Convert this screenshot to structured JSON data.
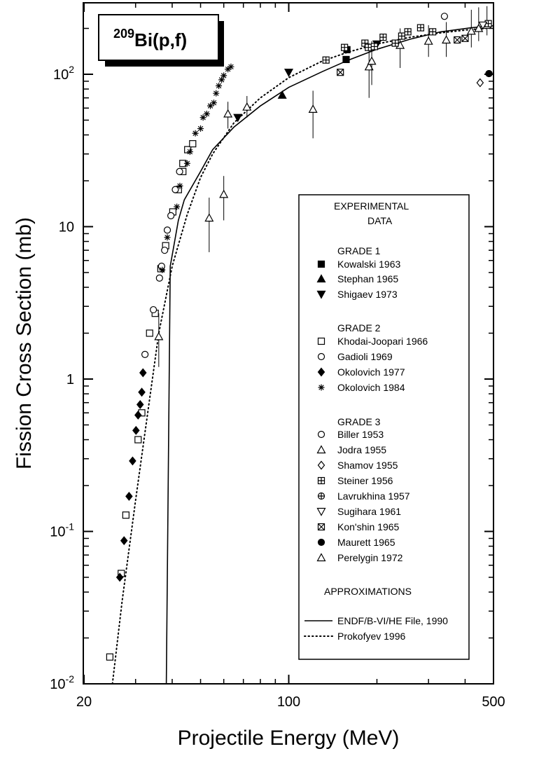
{
  "chart_data": {
    "type": "scatter",
    "title": {
      "iso": "209",
      "main": "Bi(p,f)"
    },
    "xlabel": "Projectile Energy (MeV)",
    "ylabel": "Fission Cross Section (mb)",
    "x_scale": "log",
    "y_scale": "log",
    "xlim": [
      20,
      500
    ],
    "ylim": [
      0.01,
      280
    ],
    "x_ticks": [
      {
        "v": 20,
        "label": "20"
      },
      {
        "v": 100,
        "label": "100"
      },
      {
        "v": 500,
        "label": "500"
      }
    ],
    "y_ticks": [
      {
        "v": 0.01,
        "base": "10",
        "exp": "-2"
      },
      {
        "v": 0.1,
        "base": "10",
        "exp": "-1"
      },
      {
        "v": 1,
        "base": "1",
        "exp": ""
      },
      {
        "v": 10,
        "base": "10",
        "exp": ""
      },
      {
        "v": 100,
        "base": "10",
        "exp": "2"
      }
    ],
    "legend": {
      "position": "right-middle",
      "header1": "EXPERIMENTAL",
      "header2": "DATA",
      "grade1": "GRADE 1",
      "grade2": "GRADE 2",
      "grade3": "GRADE 3",
      "approx": "APPROXIMATIONS"
    },
    "series": [
      {
        "name": "Kowalski 1963",
        "marker": "square-filled",
        "grade": 1,
        "points": [
          [
            157,
            125
          ],
          [
            158,
            145
          ]
        ]
      },
      {
        "name": "Stephan 1965",
        "marker": "triangle-filled",
        "grade": 1,
        "points": [
          [
            95,
            73
          ]
        ]
      },
      {
        "name": "Shigaev 1973",
        "marker": "triangle-down-filled",
        "grade": 1,
        "points": [
          [
            67,
            52
          ],
          [
            100,
            103
          ],
          [
            200,
            158
          ]
        ]
      },
      {
        "name": "Khodai-Joopari 1966",
        "marker": "square-open",
        "grade": 2,
        "points": [
          [
            24.5,
            0.015
          ],
          [
            26.8,
            0.053
          ],
          [
            27.8,
            0.128
          ],
          [
            30.6,
            0.4
          ],
          [
            31.5,
            0.6
          ],
          [
            33.5,
            2.0
          ],
          [
            35,
            2.7
          ],
          [
            36.6,
            5.3
          ],
          [
            38,
            7.5
          ],
          [
            40.2,
            12.5
          ],
          [
            42,
            17.5
          ],
          [
            43.5,
            23
          ],
          [
            43.5,
            26
          ],
          [
            45.2,
            32
          ],
          [
            47,
            35
          ]
        ]
      },
      {
        "name": "Gadioli 1969",
        "marker": "circle-open",
        "grade": 2,
        "points": [
          [
            32.3,
            1.45
          ],
          [
            34.5,
            2.85
          ],
          [
            36.2,
            4.6
          ],
          [
            36.8,
            5.5
          ],
          [
            37.7,
            7
          ],
          [
            38.5,
            9.5
          ],
          [
            39.6,
            11.8
          ],
          [
            41,
            17.5
          ],
          [
            42.4,
            23
          ]
        ]
      },
      {
        "name": "Okolovich 1977",
        "marker": "diamond-filled",
        "grade": 2,
        "points": [
          [
            26.5,
            0.05
          ],
          [
            27.4,
            0.087
          ],
          [
            28.5,
            0.17
          ],
          [
            29.3,
            0.29
          ],
          [
            30.1,
            0.46
          ],
          [
            30.6,
            0.58
          ],
          [
            31.1,
            0.68
          ],
          [
            31.5,
            0.82
          ],
          [
            31.8,
            1.1
          ]
        ]
      },
      {
        "name": "Okolovich 1984",
        "marker": "star",
        "grade": 2,
        "points": [
          [
            37,
            5.2
          ],
          [
            38.5,
            8.5
          ],
          [
            41.5,
            13.5
          ],
          [
            42.5,
            18.5
          ],
          [
            45,
            26
          ],
          [
            46,
            31
          ],
          [
            48,
            41
          ],
          [
            50,
            44
          ],
          [
            51,
            52
          ],
          [
            52.5,
            55
          ],
          [
            54,
            62
          ],
          [
            55.5,
            65
          ],
          [
            56.5,
            75
          ],
          [
            57.7,
            84
          ],
          [
            59,
            92
          ],
          [
            60,
            98
          ],
          [
            62,
            108
          ],
          [
            63.5,
            112
          ]
        ]
      },
      {
        "name": "Biller 1953",
        "marker": "circle-open",
        "grade": 3,
        "points": [
          [
            340,
            240
          ]
        ]
      },
      {
        "name": "Jodra 1955",
        "marker": "triangle-open",
        "grade": 3,
        "points": [
          [
            36,
            1.9,
            1.2,
            2.7
          ],
          [
            53.5,
            11.4,
            6.8,
            15.5
          ],
          [
            60,
            16.3,
            11,
            21.5
          ],
          [
            62,
            55,
            44,
            66
          ],
          [
            72,
            61,
            52,
            72
          ],
          [
            121,
            59,
            38,
            78
          ],
          [
            188,
            112,
            70,
            160
          ],
          [
            192,
            122,
            85,
            165
          ],
          [
            240,
            155,
            110,
            200
          ],
          [
            300,
            165,
            130,
            210
          ],
          [
            345,
            168,
            130,
            220
          ],
          [
            420,
            192,
            150,
            265
          ],
          [
            445,
            200,
            165,
            275
          ],
          [
            475,
            210,
            180,
            280
          ]
        ]
      },
      {
        "name": "Shamov 1955",
        "marker": "diamond-open",
        "grade": 3,
        "points": [
          [
            450,
            88
          ]
        ]
      },
      {
        "name": "Steiner 1956",
        "marker": "square-plus",
        "grade": 3,
        "points": [
          [
            134,
            124
          ],
          [
            155,
            150
          ],
          [
            182,
            160
          ],
          [
            187,
            150
          ],
          [
            196,
            152
          ],
          [
            210,
            175
          ],
          [
            231,
            160
          ],
          [
            243,
            178
          ],
          [
            255,
            190
          ],
          [
            282,
            202
          ],
          [
            310,
            190
          ],
          [
            480,
            215
          ]
        ]
      },
      {
        "name": "Lavrukhina 1957",
        "marker": "circle-plus",
        "grade": 3,
        "points": [
          [
            482,
            101
          ]
        ]
      },
      {
        "name": "Sugihara 1961",
        "marker": "triangle-down-open",
        "grade": 3,
        "points": [
          [
            460,
            210
          ]
        ]
      },
      {
        "name": "Kon'shin 1965",
        "marker": "square-x",
        "grade": 3,
        "points": [
          [
            150,
            103
          ],
          [
            376,
            168
          ],
          [
            400,
            172
          ]
        ]
      },
      {
        "name": "Maurett 1965",
        "marker": "circle-filled",
        "grade": 3,
        "points": [
          [
            483,
            101
          ]
        ]
      },
      {
        "name": "Perelygin 1972",
        "marker": "triangle-open",
        "grade": 3,
        "points": []
      }
    ],
    "approximations": [
      {
        "name": "ENDF/B-VI/HE File, 1990",
        "style": "solid",
        "points": [
          [
            38.2,
            0.01
          ],
          [
            39.4,
            5.5
          ],
          [
            42,
            11
          ],
          [
            44,
            15
          ],
          [
            50,
            23
          ],
          [
            55,
            32
          ],
          [
            65,
            45
          ],
          [
            80,
            62
          ],
          [
            100,
            82
          ],
          [
            130,
            104
          ],
          [
            160,
            124
          ],
          [
            200,
            146
          ],
          [
            260,
            170
          ],
          [
            330,
            190
          ],
          [
            420,
            202
          ],
          [
            500,
            208
          ]
        ]
      },
      {
        "name": "Prokofyev 1996",
        "style": "dotted",
        "points": [
          [
            25,
            0.01
          ],
          [
            27,
            0.035
          ],
          [
            30,
            0.16
          ],
          [
            33,
            0.6
          ],
          [
            36,
            2
          ],
          [
            40,
            5.5
          ],
          [
            45,
            12
          ],
          [
            50,
            21
          ],
          [
            55,
            30
          ],
          [
            65,
            48
          ],
          [
            80,
            70
          ],
          [
            100,
            95
          ],
          [
            130,
            122
          ],
          [
            160,
            140
          ],
          [
            200,
            158
          ],
          [
            260,
            175
          ],
          [
            330,
            187
          ],
          [
            420,
            197
          ],
          [
            500,
            202
          ]
        ]
      }
    ]
  }
}
